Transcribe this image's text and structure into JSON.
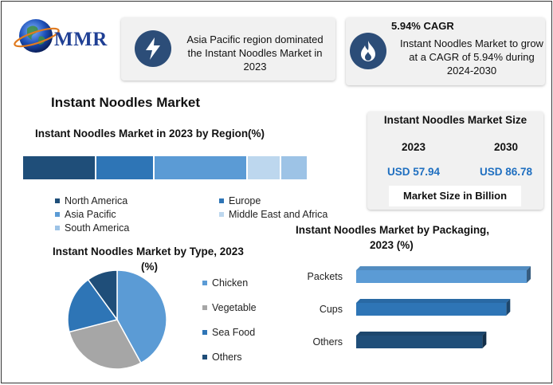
{
  "brand": {
    "name": "MMR"
  },
  "highlights": [
    {
      "icon": "lightning-bolt-icon",
      "text": "Asia Pacific region dominated the Instant Noodles Market in 2023"
    },
    {
      "icon": "flame-icon",
      "title": "5.94% CAGR",
      "text": "Instant Noodles Market to grow at a CAGR of 5.94% during 2024-2030"
    }
  ],
  "main_title": "Instant Noodles Market",
  "market_size": {
    "title": "Instant Noodles Market Size",
    "years": [
      "2023",
      "2030"
    ],
    "values": [
      "USD 57.94",
      "USD 86.78"
    ],
    "caption": "Market Size in Billion"
  },
  "colors": {
    "navy": "#1f4e79",
    "blue": "#2e75b6",
    "mid_blue": "#5b9bd5",
    "pale_blue": "#bdd7ee",
    "light_blue": "#9dc3e6",
    "gray": "#a6a6a6",
    "accent_text": "#1f6fc0"
  },
  "chart_data": [
    {
      "type": "bar",
      "stacked": true,
      "title": "Instant Noodles Market in 2023 by Region(%)",
      "categories": [
        "North America",
        "Europe",
        "Asia Pacific",
        "Middle East and Africa",
        "South America"
      ],
      "values": [
        25,
        20,
        32,
        11,
        9
      ],
      "colors": [
        "#1f4e79",
        "#2e75b6",
        "#5b9bd5",
        "#bdd7ee",
        "#9dc3e6"
      ]
    },
    {
      "type": "pie",
      "title": "Instant Noodles Market by Type, 2023",
      "title_line2": "(%)",
      "categories": [
        "Chicken",
        "Vegetable",
        "Sea Food",
        "Others"
      ],
      "values": [
        42,
        29,
        19,
        10
      ],
      "colors": [
        "#5b9bd5",
        "#a6a6a6",
        "#2e75b6",
        "#1f4e79"
      ]
    },
    {
      "type": "bar",
      "orientation": "horizontal",
      "title": "Instant Noodles Market by Packaging,",
      "title_line2": "2023 (%)",
      "categories": [
        "Packets",
        "Cups",
        "Others"
      ],
      "values": [
        100,
        88,
        74
      ],
      "colors": [
        "#5b9bd5",
        "#2e75b6",
        "#1f4e79"
      ]
    }
  ]
}
